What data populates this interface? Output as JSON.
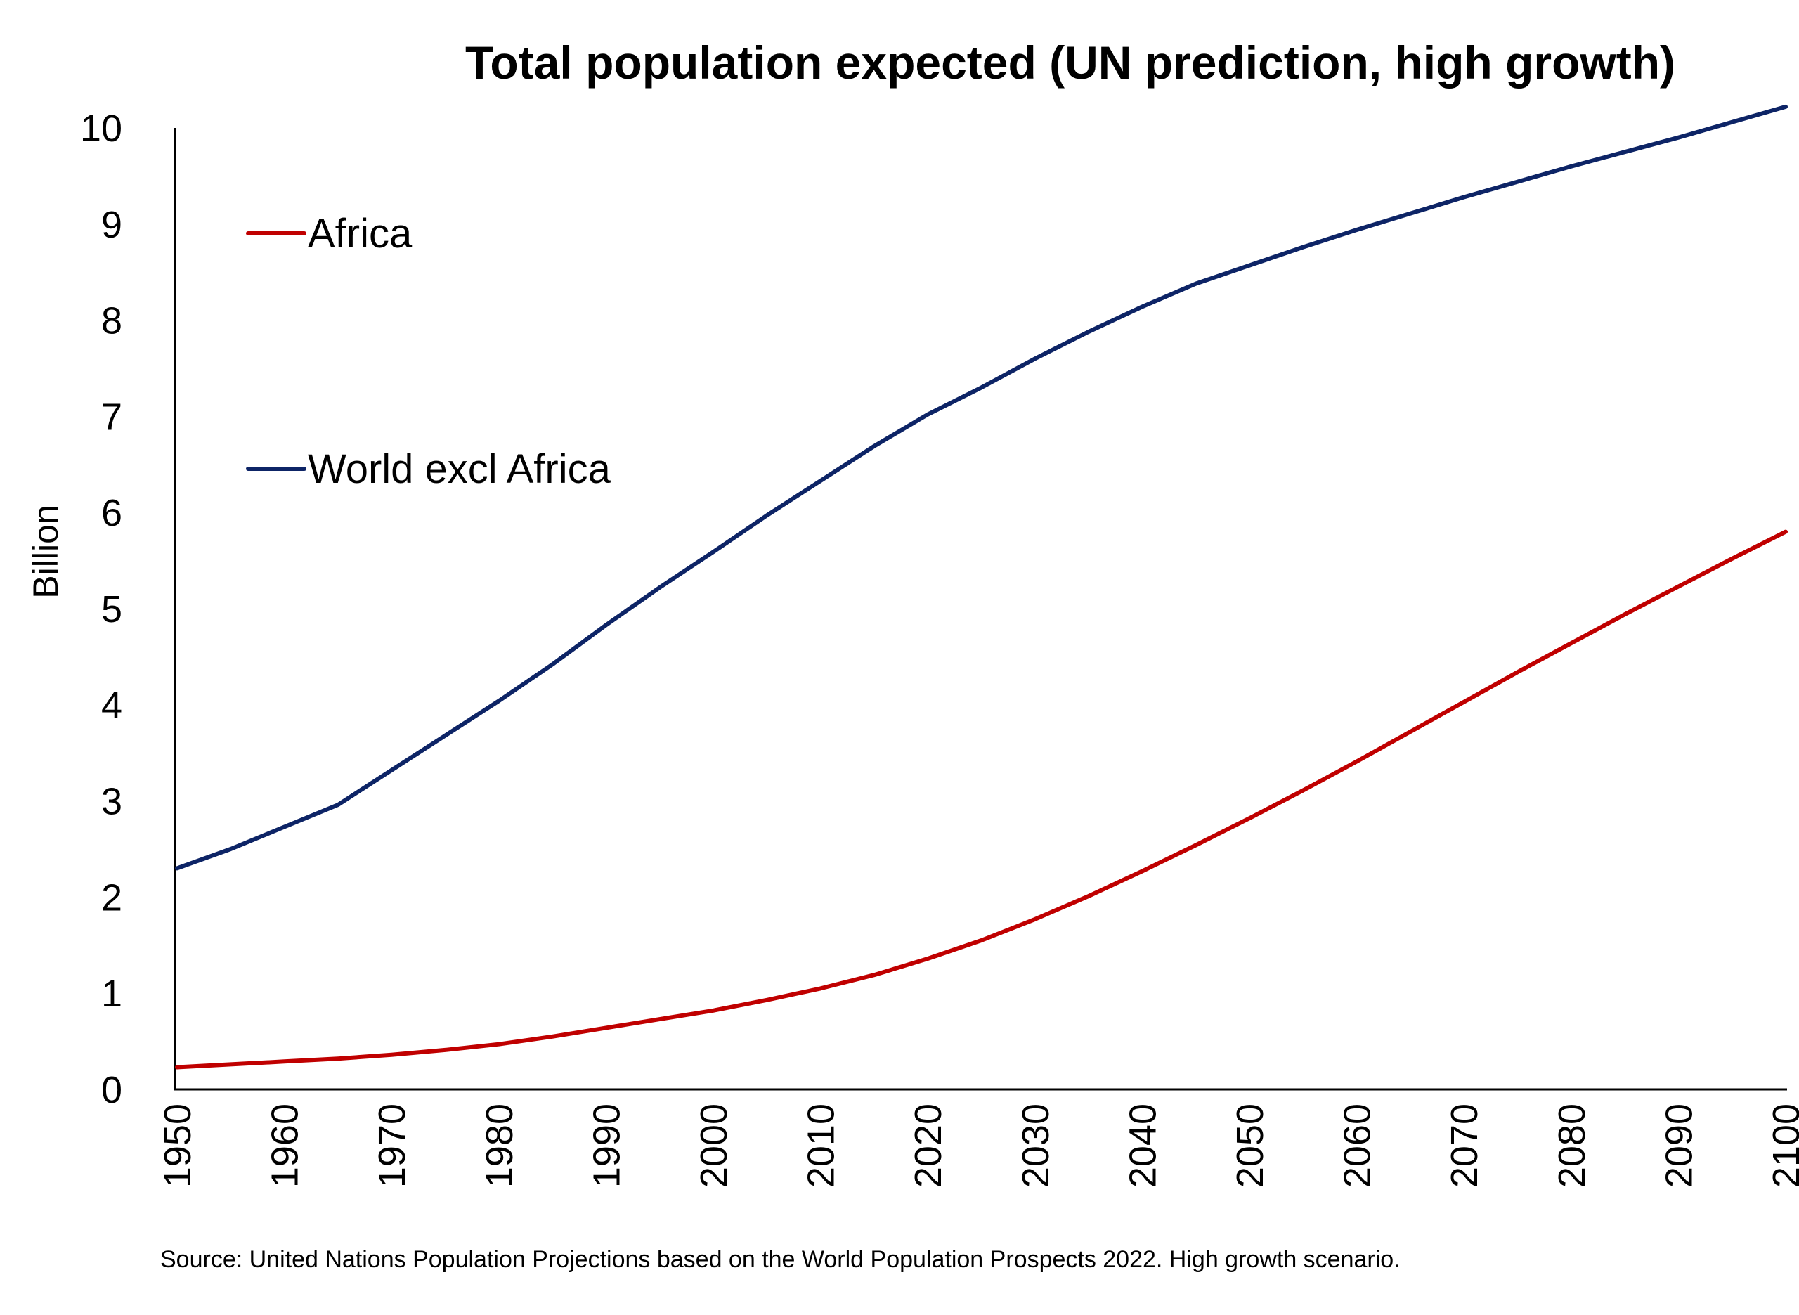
{
  "chart_data": {
    "type": "line",
    "title": "Total population expected (UN prediction, high growth)",
    "xlabel": "",
    "ylabel": "Billion",
    "xlim": [
      1950,
      2100
    ],
    "ylim": [
      0,
      10
    ],
    "x_ticks": [
      "1950",
      "1960",
      "1970",
      "1980",
      "1990",
      "2000",
      "2010",
      "2020",
      "2030",
      "2040",
      "2050",
      "2060",
      "2070",
      "2080",
      "2090",
      "2100"
    ],
    "y_ticks": [
      "0",
      "1",
      "2",
      "3",
      "4",
      "5",
      "6",
      "7",
      "8",
      "9",
      "10"
    ],
    "grid": false,
    "legend_placement": "top-left",
    "source": "Source: United Nations Population Projections based on the World Population Prospects 2022. High growth scenario.",
    "x": [
      1950,
      1955,
      1960,
      1965,
      1970,
      1975,
      1980,
      1985,
      1990,
      1995,
      2000,
      2005,
      2010,
      2015,
      2020,
      2025,
      2030,
      2035,
      2040,
      2045,
      2050,
      2055,
      2060,
      2065,
      2070,
      2075,
      2080,
      2085,
      2090,
      2095,
      2100
    ],
    "series": [
      {
        "name": "Africa",
        "color": "#c00000",
        "values": [
          0.23,
          0.26,
          0.29,
          0.32,
          0.36,
          0.41,
          0.47,
          0.55,
          0.64,
          0.73,
          0.82,
          0.93,
          1.05,
          1.19,
          1.36,
          1.55,
          1.77,
          2.01,
          2.27,
          2.54,
          2.82,
          3.11,
          3.41,
          3.72,
          4.03,
          4.34,
          4.64,
          4.94,
          5.23,
          5.52,
          5.8
        ]
      },
      {
        "name": "World excl Africa",
        "color": "#0d2466",
        "values": [
          2.3,
          2.5,
          2.73,
          2.96,
          3.32,
          3.68,
          4.04,
          4.42,
          4.83,
          5.22,
          5.59,
          5.97,
          6.33,
          6.69,
          7.02,
          7.3,
          7.6,
          7.88,
          8.14,
          8.38,
          8.57,
          8.76,
          8.94,
          9.11,
          9.28,
          9.44,
          9.6,
          9.75,
          9.9,
          10.06,
          10.22
        ]
      }
    ]
  }
}
